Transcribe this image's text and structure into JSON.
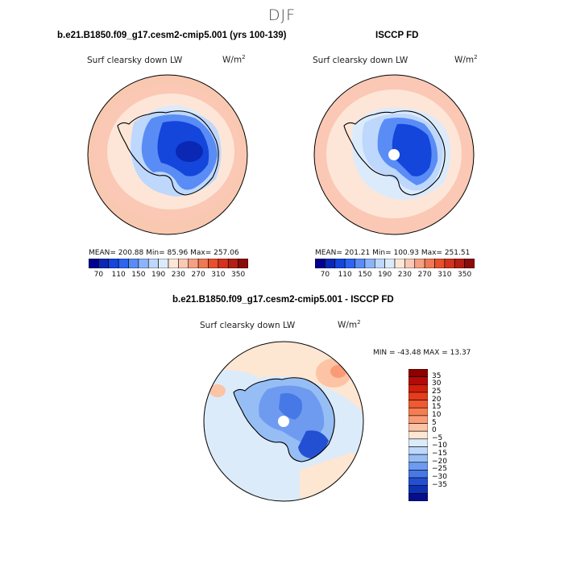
{
  "season": "DJF",
  "panels": [
    {
      "case_title": "b.e21.B1850.f09_g17.cesm2-cmip5.001 (yrs 100-139)",
      "variable": "Surf clearsky down LW",
      "units_base": "W/m",
      "units_exp": "2",
      "stats": "MEAN= 200.88   Min=   85.96   Max= 257.06"
    },
    {
      "case_title": "ISCCP FD",
      "variable": "Surf clearsky down LW",
      "units_base": "W/m",
      "units_exp": "2",
      "stats": "MEAN= 201.21   Min= 100.93   Max= 251.51"
    }
  ],
  "horizontal_colorbar": {
    "colors": [
      "#00008c",
      "#0a28b4",
      "#1446dc",
      "#2d64f0",
      "#5a8cf5",
      "#8cb4fa",
      "#bed7fc",
      "#dcebfc",
      "#fde6d7",
      "#fac8b4",
      "#f5a082",
      "#f07855",
      "#e6502d",
      "#d2321e",
      "#b41e14",
      "#8c0a0a"
    ],
    "labels": [
      "70",
      "110",
      "150",
      "190",
      "230",
      "270",
      "310",
      "350"
    ]
  },
  "difference_panel": {
    "case_title": "b.e21.B1850.f09_g17.cesm2-cmip5.001 - ISCCP FD",
    "variable": "Surf clearsky down LW",
    "units_base": "W/m",
    "units_exp": "2",
    "stats": "MIN = -43.48  MAX =  13.37"
  },
  "vertical_colorbar": {
    "colors_top_to_bottom": [
      "#8c0000",
      "#b40a0a",
      "#d21e0a",
      "#e63c1e",
      "#f05a32",
      "#f57d50",
      "#fa9b78",
      "#fcc3a5",
      "#fde6d2",
      "#dcebfa",
      "#bed7fa",
      "#96bef5",
      "#6e9bf0",
      "#4678e6",
      "#2350d2",
      "#0f32b4",
      "#050f8c"
    ],
    "labels_top_to_bottom": [
      "35",
      "30",
      "25",
      "20",
      "15",
      "10",
      "5",
      "0",
      "−5",
      "−10",
      "−15",
      "−20",
      "−25",
      "−30",
      "−35"
    ]
  }
}
